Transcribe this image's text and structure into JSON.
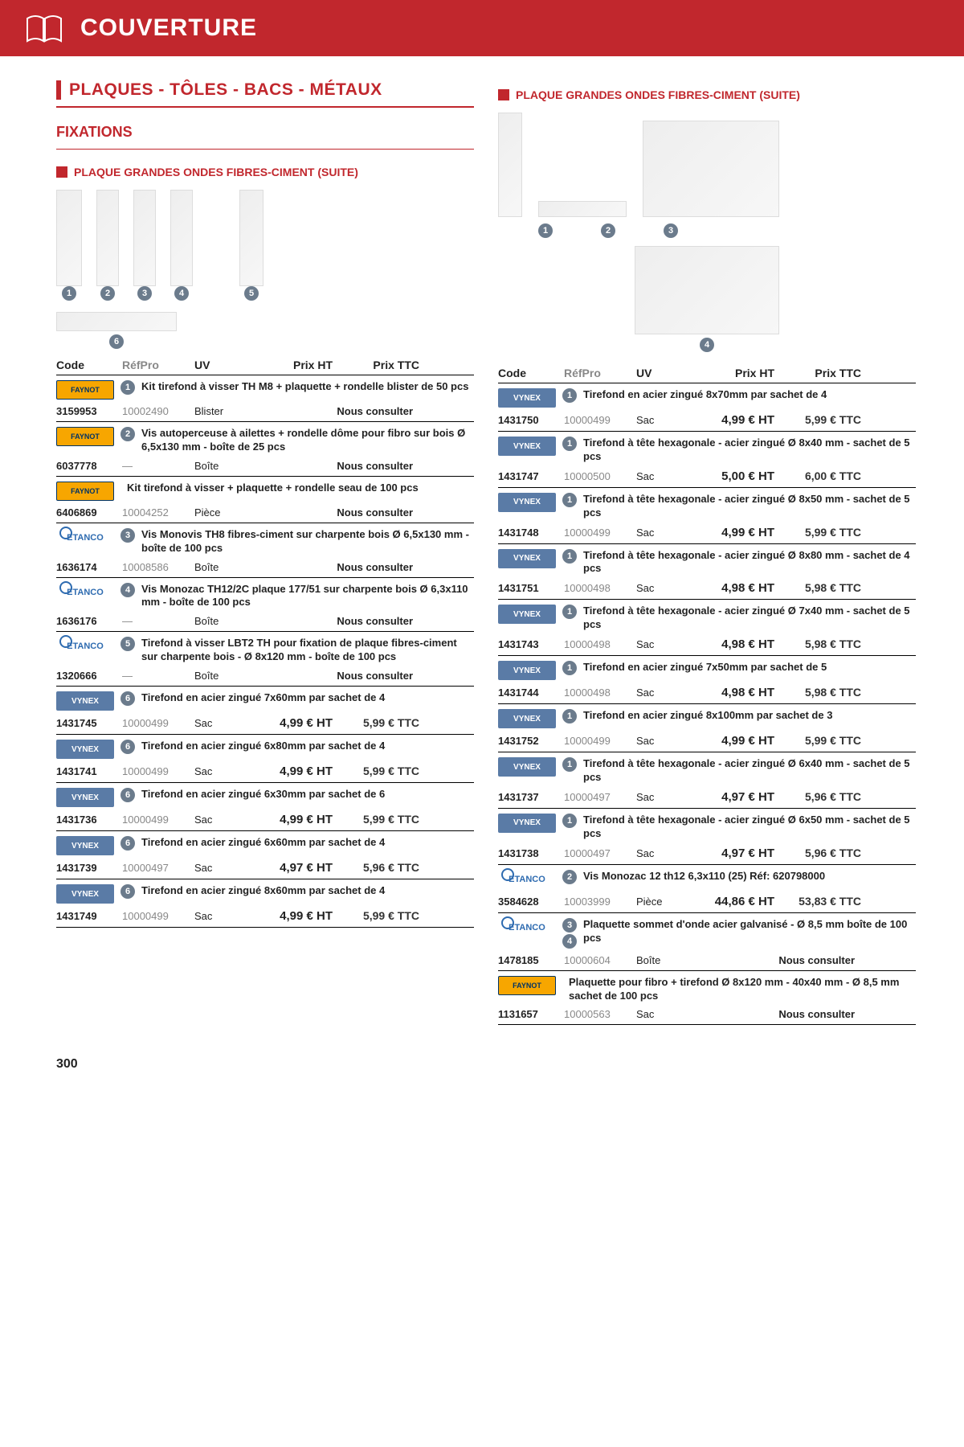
{
  "header": {
    "title": "COUVERTURE"
  },
  "section1_title": "PLAQUES - TÔLES - BACS - MÉTAUX",
  "sub_title": "FIXATIONS",
  "mini_heading_left": "PLAQUE GRANDES ONDES FIBRES-CIMENT (SUITE)",
  "mini_heading_right": "PLAQUE GRANDES ONDES FIBRES-CIMENT (SUITE)",
  "table_headers": {
    "code": "Code",
    "ref": "RéfPro",
    "uv": "UV",
    "ht": "Prix HT",
    "ttc": "Prix TTC"
  },
  "nous_consulter": "Nous consulter",
  "page_number": "300",
  "left_groups": [
    {
      "brand": "FAYNOT",
      "badge": "1",
      "desc": "Kit tirefond à visser TH M8 + plaquette + rondelle blister de 50 pcs",
      "rows": [
        {
          "code": "3159953",
          "ref": "10002490",
          "uv": "Blister",
          "nous": true
        }
      ]
    },
    {
      "brand": "FAYNOT",
      "badge": "2",
      "desc": "Vis autoperceuse à ailettes + rondelle dôme pour fibro sur bois Ø 6,5x130 mm - boîte de 25 pcs",
      "rows": [
        {
          "code": "6037778",
          "ref": "—",
          "uv": "Boîte",
          "nous": true
        }
      ]
    },
    {
      "brand": "FAYNOT",
      "badge": "",
      "desc": "Kit tirefond à visser + plaquette + rondelle seau de 100 pcs",
      "rows": [
        {
          "code": "6406869",
          "ref": "10004252",
          "uv": "Pièce",
          "nous": true
        }
      ]
    },
    {
      "brand": "ETANCO",
      "badge": "3",
      "desc": "Vis Monovis TH8 fibres-ciment sur charpente bois Ø 6,5x130 mm - boîte de 100 pcs",
      "rows": [
        {
          "code": "1636174",
          "ref": "10008586",
          "uv": "Boîte",
          "nous": true
        }
      ]
    },
    {
      "brand": "ETANCO",
      "badge": "4",
      "desc": "Vis Monozac TH12/2C plaque 177/51 sur charpente bois Ø 6,3x110 mm - boîte de 100 pcs",
      "rows": [
        {
          "code": "1636176",
          "ref": "—",
          "uv": "Boîte",
          "nous": true
        }
      ]
    },
    {
      "brand": "ETANCO",
      "badge": "5",
      "desc": "Tirefond à visser LBT2 TH pour fixation de plaque fibres-ciment sur charpente bois - Ø 8x120 mm - boîte de 100 pcs",
      "rows": [
        {
          "code": "1320666",
          "ref": "—",
          "uv": "Boîte",
          "nous": true
        }
      ]
    },
    {
      "brand": "VYNEX",
      "badge": "6",
      "desc": "Tirefond en acier zingué 7x60mm par sachet de 4",
      "rows": [
        {
          "code": "1431745",
          "ref": "10000499",
          "uv": "Sac",
          "ht": "4,99 € HT",
          "ttc": "5,99 € TTC"
        }
      ]
    },
    {
      "brand": "VYNEX",
      "badge": "6",
      "desc": "Tirefond en acier zingué 6x80mm par sachet de 4",
      "rows": [
        {
          "code": "1431741",
          "ref": "10000499",
          "uv": "Sac",
          "ht": "4,99 € HT",
          "ttc": "5,99 € TTC"
        }
      ]
    },
    {
      "brand": "VYNEX",
      "badge": "6",
      "desc": "Tirefond en acier zingué 6x30mm par sachet de 6",
      "rows": [
        {
          "code": "1431736",
          "ref": "10000499",
          "uv": "Sac",
          "ht": "4,99 € HT",
          "ttc": "5,99 € TTC"
        }
      ]
    },
    {
      "brand": "VYNEX",
      "badge": "6",
      "desc": "Tirefond en acier zingué 6x60mm par sachet de 4",
      "rows": [
        {
          "code": "1431739",
          "ref": "10000497",
          "uv": "Sac",
          "ht": "4,97 € HT",
          "ttc": "5,96 € TTC"
        }
      ]
    },
    {
      "brand": "VYNEX",
      "badge": "6",
      "desc": "Tirefond en acier zingué 8x60mm par sachet de 4",
      "rows": [
        {
          "code": "1431749",
          "ref": "10000499",
          "uv": "Sac",
          "ht": "4,99 € HT",
          "ttc": "5,99 € TTC"
        }
      ]
    }
  ],
  "right_groups": [
    {
      "brand": "VYNEX",
      "badge": "1",
      "desc": "Tirefond en acier zingué 8x70mm par sachet de 4",
      "rows": [
        {
          "code": "1431750",
          "ref": "10000499",
          "uv": "Sac",
          "ht": "4,99 € HT",
          "ttc": "5,99 € TTC"
        }
      ]
    },
    {
      "brand": "VYNEX",
      "badge": "1",
      "desc": "Tirefond à tête hexagonale - acier zingué Ø 8x40 mm - sachet de 5 pcs",
      "rows": [
        {
          "code": "1431747",
          "ref": "10000500",
          "uv": "Sac",
          "ht": "5,00 € HT",
          "ttc": "6,00 € TTC"
        }
      ]
    },
    {
      "brand": "VYNEX",
      "badge": "1",
      "desc": "Tirefond à tête hexagonale - acier zingué Ø 8x50 mm - sachet de 5 pcs",
      "rows": [
        {
          "code": "1431748",
          "ref": "10000499",
          "uv": "Sac",
          "ht": "4,99 € HT",
          "ttc": "5,99 € TTC"
        }
      ]
    },
    {
      "brand": "VYNEX",
      "badge": "1",
      "desc": "Tirefond à tête hexagonale - acier zingué Ø 8x80 mm - sachet de 4 pcs",
      "rows": [
        {
          "code": "1431751",
          "ref": "10000498",
          "uv": "Sac",
          "ht": "4,98 € HT",
          "ttc": "5,98 € TTC"
        }
      ]
    },
    {
      "brand": "VYNEX",
      "badge": "1",
      "desc": "Tirefond à tête hexagonale - acier zingué Ø 7x40 mm - sachet de 5 pcs",
      "rows": [
        {
          "code": "1431743",
          "ref": "10000498",
          "uv": "Sac",
          "ht": "4,98 € HT",
          "ttc": "5,98 € TTC"
        }
      ]
    },
    {
      "brand": "VYNEX",
      "badge": "1",
      "desc": "Tirefond en acier zingué 7x50mm par sachet de 5",
      "rows": [
        {
          "code": "1431744",
          "ref": "10000498",
          "uv": "Sac",
          "ht": "4,98 € HT",
          "ttc": "5,98 € TTC"
        }
      ]
    },
    {
      "brand": "VYNEX",
      "badge": "1",
      "desc": "Tirefond en acier zingué 8x100mm par sachet de 3",
      "rows": [
        {
          "code": "1431752",
          "ref": "10000499",
          "uv": "Sac",
          "ht": "4,99 € HT",
          "ttc": "5,99 € TTC"
        }
      ]
    },
    {
      "brand": "VYNEX",
      "badge": "1",
      "desc": "Tirefond à tête hexagonale - acier zingué Ø 6x40 mm - sachet de 5 pcs",
      "rows": [
        {
          "code": "1431737",
          "ref": "10000497",
          "uv": "Sac",
          "ht": "4,97 € HT",
          "ttc": "5,96 € TTC"
        }
      ]
    },
    {
      "brand": "VYNEX",
      "badge": "1",
      "desc": "Tirefond à tête hexagonale - acier zingué Ø 6x50 mm - sachet de 5 pcs",
      "rows": [
        {
          "code": "1431738",
          "ref": "10000497",
          "uv": "Sac",
          "ht": "4,97 € HT",
          "ttc": "5,96 € TTC"
        }
      ]
    },
    {
      "brand": "ETANCO",
      "badge": "2",
      "desc": "Vis Monozac 12 th12 6,3x110 (25) Réf: 620798000",
      "rows": [
        {
          "code": "3584628",
          "ref": "10003999",
          "uv": "Pièce",
          "ht": "44,86 € HT",
          "ttc": "53,83 € TTC"
        }
      ]
    },
    {
      "brand": "ETANCO",
      "badge": "3",
      "badge2": "4",
      "desc": "Plaquette sommet d'onde acier galvanisé - Ø 8,5 mm boîte de 100 pcs",
      "rows": [
        {
          "code": "1478185",
          "ref": "10000604",
          "uv": "Boîte",
          "nous": true
        }
      ]
    },
    {
      "brand": "FAYNOT",
      "badge": "",
      "desc": "Plaquette pour fibro + tirefond Ø 8x120 mm - 40x40 mm - Ø 8,5 mm sachet de 100 pcs",
      "rows": [
        {
          "code": "1131657",
          "ref": "10000563",
          "uv": "Sac",
          "nous": true
        }
      ]
    }
  ]
}
